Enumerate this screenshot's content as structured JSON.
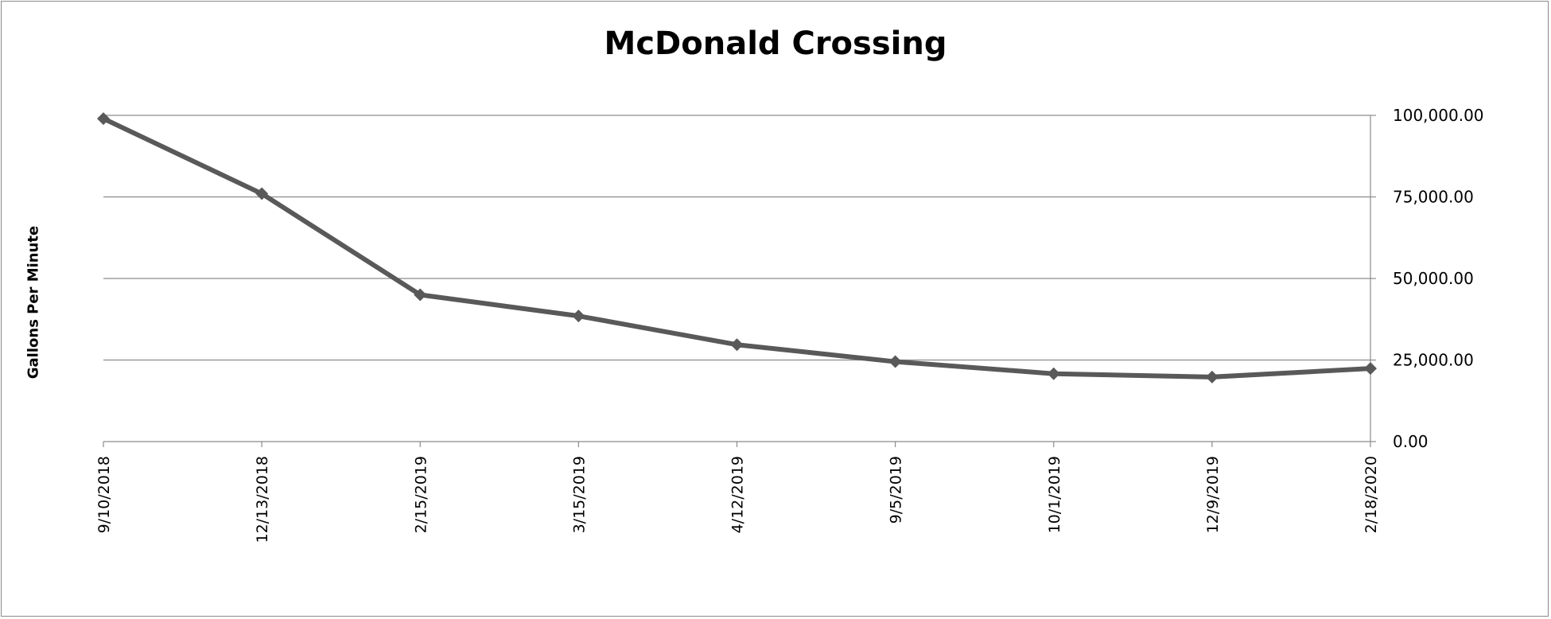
{
  "chart_data": {
    "type": "line",
    "title": "McDonald Crossing",
    "ylabel": "Gallons Per Minute",
    "xlabel": "",
    "categories": [
      "9/10/2018",
      "12/13/2018",
      "2/15/2019",
      "3/15/2019",
      "4/12/2019",
      "9/5/2019",
      "10/1/2019",
      "12/9/2019",
      "2/18/2020"
    ],
    "series": [
      {
        "values": [
          99000,
          76000,
          45000,
          38500,
          29700,
          24500,
          20800,
          19800,
          22400
        ]
      }
    ],
    "ylim": [
      0,
      100000
    ],
    "yticks": [
      "0.00",
      "25,000.00",
      "50,000.00",
      "75,000.00",
      "100,000.00"
    ],
    "ytick_values": [
      0,
      25000,
      50000,
      75000,
      100000
    ],
    "y_axis_side": "right",
    "grid": true,
    "legend": "none",
    "colors": {
      "line": "#595959",
      "grid": "#8c8c8c",
      "axis": "#8c8c8c"
    }
  }
}
